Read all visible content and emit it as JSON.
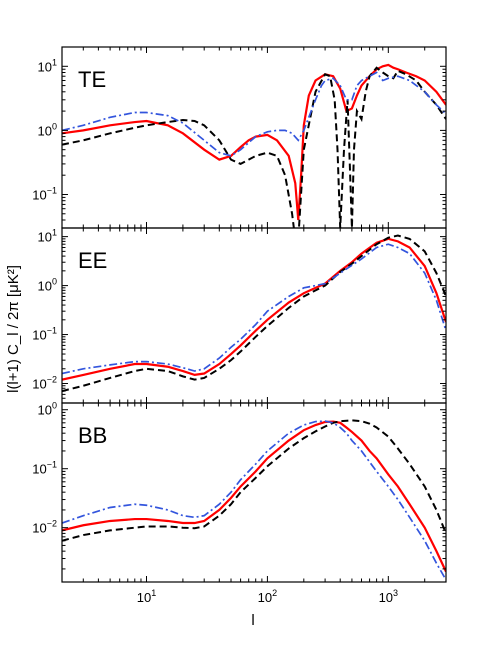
{
  "chart_data": {
    "type": "line",
    "x_scale": "log",
    "y_scale": "log",
    "xlabel": "l",
    "ylabel": "l(l+1) C_l / 2π [μK²]",
    "xlim": [
      2,
      3000
    ],
    "x_ticks": [
      {
        "value": 10,
        "base": "10",
        "exp": "1"
      },
      {
        "value": 100,
        "base": "10",
        "exp": "2"
      },
      {
        "value": 1000,
        "base": "10",
        "exp": "3"
      }
    ],
    "series_styles": [
      {
        "color": "#ff0000",
        "dash": "",
        "width": 2.2
      },
      {
        "color": "#000000",
        "dash": "7,4",
        "width": 2.0
      },
      {
        "color": "#3355dd",
        "dash": "8,3,2,3",
        "width": 1.7
      }
    ],
    "panels": [
      {
        "label": "TE",
        "ylim": [
          0.03,
          20
        ],
        "y_ticks": [
          {
            "value": 10,
            "base": "10",
            "exp": "1"
          },
          {
            "value": 1,
            "base": "10",
            "exp": "0"
          },
          {
            "value": 0.1,
            "base": "10",
            "exp": "−1"
          }
        ],
        "series": [
          {
            "x": [
              2,
              3,
              5,
              8,
              10,
              15,
              20,
              30,
              40,
              50,
              60,
              70,
              80,
              100,
              120,
              150,
              170,
              180,
              190,
              200,
              220,
              250,
              300,
              350,
              400,
              450,
              500,
              550,
              600,
              700,
              800,
              900,
              1000,
              1100,
              1200,
              1400,
              1700,
              2000,
              2500,
              3000
            ],
            "y": [
              0.9,
              1.0,
              1.2,
              1.35,
              1.4,
              1.2,
              0.9,
              0.5,
              0.35,
              0.4,
              0.55,
              0.7,
              0.8,
              0.85,
              0.7,
              0.4,
              0.15,
              0.04,
              0.2,
              1.2,
              3.5,
              6.0,
              7.5,
              7.0,
              4.5,
              2.0,
              2.2,
              3.5,
              5.0,
              7.0,
              9.0,
              10.0,
              10.5,
              9.5,
              9.0,
              8.0,
              7.0,
              6.0,
              4.0,
              2.5
            ]
          },
          {
            "x": [
              2,
              3,
              5,
              8,
              10,
              15,
              20,
              25,
              30,
              40,
              50,
              60,
              70,
              80,
              100,
              120,
              140,
              160,
              170,
              180,
              200,
              250,
              300,
              330,
              360,
              380,
              400,
              430,
              460,
              480,
              500,
              520,
              550,
              600,
              650,
              700,
              800,
              900,
              1000,
              1100,
              1200,
              1400,
              1700,
              2000,
              2500,
              3000
            ],
            "y": [
              0.6,
              0.7,
              0.9,
              1.1,
              1.2,
              1.35,
              1.45,
              1.4,
              1.2,
              0.7,
              0.35,
              0.3,
              0.35,
              0.4,
              0.45,
              0.4,
              0.2,
              0.05,
              0.02,
              0.02,
              0.5,
              4.0,
              7.5,
              7.0,
              3.0,
              0.5,
              0.03,
              0.5,
              3.0,
              0.3,
              0.03,
              0.5,
              2.0,
              1.5,
              4.0,
              7.0,
              9.5,
              8.0,
              7.0,
              6.5,
              8.5,
              7.5,
              6.0,
              4.0,
              2.5,
              1.5
            ]
          },
          {
            "x": [
              2,
              3,
              5,
              8,
              10,
              15,
              20,
              30,
              40,
              50,
              60,
              80,
              100,
              120,
              140,
              160,
              180,
              200,
              250,
              280,
              300,
              350,
              400,
              450,
              500,
              550,
              600,
              700,
              800,
              900,
              1000,
              1200,
              1500,
              2000,
              2500,
              3000
            ],
            "y": [
              1.0,
              1.2,
              1.6,
              1.9,
              1.9,
              1.7,
              1.3,
              0.7,
              0.45,
              0.4,
              0.5,
              0.8,
              0.95,
              1.0,
              1.0,
              0.9,
              0.7,
              1.0,
              3.0,
              5.0,
              6.0,
              6.5,
              5.0,
              3.0,
              3.0,
              5.0,
              6.0,
              7.0,
              8.0,
              6.0,
              6.5,
              7.0,
              6.0,
              4.0,
              2.5,
              1.8
            ]
          }
        ]
      },
      {
        "label": "EE",
        "ylim": [
          0.004,
          15
        ],
        "y_ticks": [
          {
            "value": 10,
            "base": "10",
            "exp": "1"
          },
          {
            "value": 1,
            "base": "10",
            "exp": "0"
          },
          {
            "value": 0.1,
            "base": "10",
            "exp": "−1"
          },
          {
            "value": 0.01,
            "base": "10",
            "exp": "−2"
          }
        ],
        "series": [
          {
            "x": [
              2,
              3,
              5,
              8,
              10,
              15,
              20,
              25,
              30,
              40,
              50,
              60,
              80,
              100,
              150,
              200,
              250,
              300,
              400,
              500,
              600,
              800,
              1000,
              1200,
              1500,
              2000,
              2500,
              3000
            ],
            "y": [
              0.012,
              0.015,
              0.02,
              0.025,
              0.025,
              0.022,
              0.018,
              0.015,
              0.016,
              0.025,
              0.04,
              0.06,
              0.12,
              0.2,
              0.45,
              0.7,
              0.9,
              1.1,
              2.0,
              3.0,
              4.5,
              7.5,
              9.0,
              8.0,
              6.0,
              2.5,
              0.7,
              0.18
            ]
          },
          {
            "x": [
              2,
              3,
              5,
              8,
              10,
              15,
              20,
              25,
              30,
              40,
              50,
              60,
              80,
              100,
              150,
              200,
              250,
              300,
              400,
              500,
              600,
              800,
              1000,
              1200,
              1500,
              2000,
              2500,
              3000
            ],
            "y": [
              0.007,
              0.009,
              0.013,
              0.018,
              0.02,
              0.018,
              0.014,
              0.012,
              0.013,
              0.02,
              0.03,
              0.045,
              0.09,
              0.15,
              0.35,
              0.6,
              0.8,
              1.0,
              1.9,
              2.8,
              4.0,
              7.0,
              9.5,
              10.5,
              9.0,
              5.0,
              1.8,
              0.6
            ]
          },
          {
            "x": [
              2,
              3,
              5,
              8,
              10,
              15,
              20,
              25,
              30,
              40,
              50,
              60,
              80,
              100,
              150,
              200,
              250,
              300,
              400,
              500,
              600,
              800,
              1000,
              1200,
              1500,
              2000,
              2500,
              3000
            ],
            "y": [
              0.016,
              0.02,
              0.024,
              0.028,
              0.028,
              0.025,
              0.021,
              0.018,
              0.02,
              0.033,
              0.055,
              0.08,
              0.16,
              0.3,
              0.6,
              0.9,
              1.0,
              1.1,
              1.8,
              2.6,
              3.5,
              6.0,
              7.0,
              6.0,
              4.5,
              1.8,
              0.5,
              0.12
            ]
          }
        ]
      },
      {
        "label": "BB",
        "ylim": [
          0.0012,
          1.3
        ],
        "y_ticks": [
          {
            "value": 1,
            "base": "10",
            "exp": "0"
          },
          {
            "value": 0.1,
            "base": "10",
            "exp": "−1"
          },
          {
            "value": 0.01,
            "base": "10",
            "exp": "−2"
          }
        ],
        "series": [
          {
            "x": [
              2,
              3,
              5,
              8,
              10,
              15,
              20,
              25,
              30,
              40,
              50,
              60,
              80,
              100,
              150,
              200,
              250,
              300,
              350,
              400,
              450,
              500,
              600,
              700,
              800,
              1000,
              1200,
              1500,
              2000,
              2500,
              3000
            ],
            "y": [
              0.009,
              0.011,
              0.013,
              0.014,
              0.014,
              0.013,
              0.012,
              0.012,
              0.013,
              0.02,
              0.032,
              0.05,
              0.09,
              0.15,
              0.3,
              0.45,
              0.55,
              0.62,
              0.63,
              0.6,
              0.5,
              0.42,
              0.3,
              0.2,
              0.15,
              0.08,
              0.05,
              0.025,
              0.01,
              0.004,
              0.0018
            ]
          },
          {
            "x": [
              2,
              3,
              5,
              8,
              10,
              15,
              20,
              25,
              30,
              40,
              50,
              60,
              80,
              100,
              150,
              200,
              250,
              300,
              350,
              400,
              500,
              600,
              700,
              800,
              1000,
              1200,
              1500,
              2000,
              2500,
              3000
            ],
            "y": [
              0.006,
              0.0075,
              0.009,
              0.01,
              0.0105,
              0.0105,
              0.01,
              0.0098,
              0.0105,
              0.016,
              0.025,
              0.04,
              0.07,
              0.11,
              0.22,
              0.33,
              0.43,
              0.52,
              0.6,
              0.64,
              0.66,
              0.64,
              0.58,
              0.5,
              0.35,
              0.22,
              0.12,
              0.05,
              0.02,
              0.008
            ]
          },
          {
            "x": [
              2,
              3,
              5,
              8,
              10,
              15,
              20,
              25,
              30,
              40,
              50,
              60,
              80,
              100,
              150,
              200,
              250,
              300,
              350,
              400,
              450,
              500,
              600,
              700,
              800,
              1000,
              1200,
              1500,
              2000,
              2500,
              3000
            ],
            "y": [
              0.012,
              0.016,
              0.022,
              0.025,
              0.024,
              0.02,
              0.016,
              0.015,
              0.016,
              0.025,
              0.04,
              0.065,
              0.12,
              0.2,
              0.4,
              0.55,
              0.63,
              0.64,
              0.6,
              0.5,
              0.4,
              0.3,
              0.2,
              0.13,
              0.09,
              0.05,
              0.03,
              0.015,
              0.006,
              0.0025,
              0.0013
            ]
          }
        ]
      }
    ]
  }
}
